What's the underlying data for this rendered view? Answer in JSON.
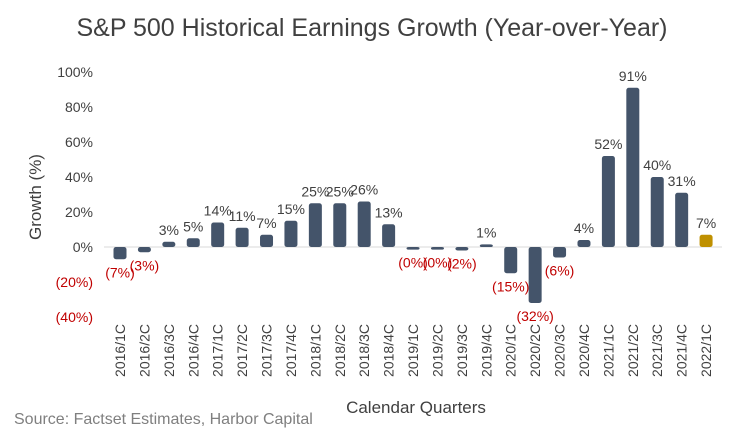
{
  "source": "Source: Factset Estimates, Harbor Capital",
  "chart_data": {
    "type": "bar",
    "title": "S&P 500 Historical Earnings Growth (Year-over-Year)",
    "xlabel": "Calendar Quarters",
    "ylabel": "Growth (%)",
    "ylim": [
      -40,
      100
    ],
    "yticks": [
      "(40%)",
      "(20%)",
      "0%",
      "20%",
      "40%",
      "60%",
      "80%",
      "100%"
    ],
    "ytick_values": [
      -40,
      -20,
      0,
      20,
      40,
      60,
      80,
      100
    ],
    "categories": [
      "2016/1C",
      "2016/2C",
      "2016/3C",
      "2016/4C",
      "2017/1C",
      "2017/2C",
      "2017/3C",
      "2017/4C",
      "2018/1C",
      "2018/2C",
      "2018/3C",
      "2018/4C",
      "2019/1C",
      "2019/2C",
      "2019/3C",
      "2019/4C",
      "2020/1C",
      "2020/2C",
      "2020/3C",
      "2020/4C",
      "2021/1C",
      "2021/2C",
      "2021/3C",
      "2021/4C",
      "2022/1C"
    ],
    "values": [
      -7,
      -3,
      3,
      5,
      14,
      11,
      7,
      15,
      25,
      25,
      26,
      13,
      0,
      0,
      -2,
      1,
      -15,
      -32,
      -6,
      4,
      52,
      91,
      40,
      31,
      7
    ],
    "data_labels": [
      "(7%)",
      "(3%)",
      "3%",
      "5%",
      "14%",
      "11%",
      "7%",
      "15%",
      "25%",
      "25%",
      "26%",
      "13%",
      "(0%)",
      "(0%)",
      "(2%)",
      "1%",
      "(15%)",
      "(32%)",
      "(6%)",
      "4%",
      "52%",
      "91%",
      "40%",
      "31%",
      "7%"
    ],
    "grid": false,
    "colors": {
      "bar": "#44546a",
      "highlight_bar": "#bf9000",
      "negative_label": "#c00000",
      "text": "#404040",
      "zero_line": "#d9d9d9"
    },
    "highlight_index": 24
  }
}
